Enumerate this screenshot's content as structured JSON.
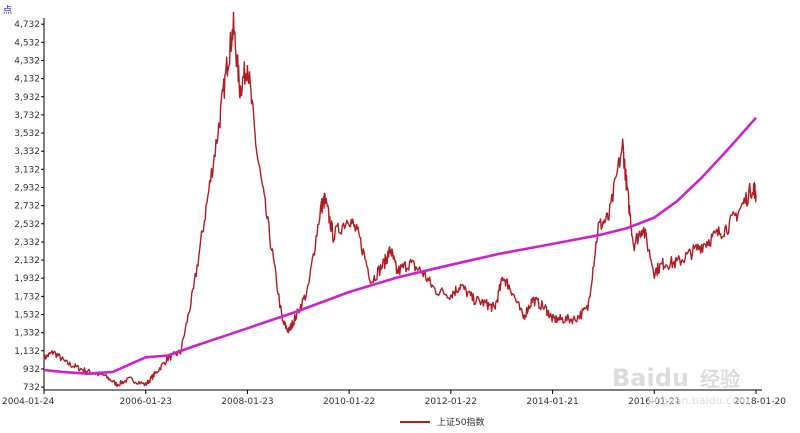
{
  "chart_data": {
    "type": "line",
    "unit_label": "点",
    "y_ticks": [
      732,
      932,
      1132,
      1332,
      1532,
      1732,
      1932,
      2132,
      2332,
      2532,
      2732,
      2932,
      3132,
      3332,
      3532,
      3732,
      3932,
      4132,
      4332,
      4532,
      4732
    ],
    "x_ticks": [
      "2004-01-24",
      "2006-01-23",
      "2008-01-23",
      "2010-01-22",
      "2012-01-22",
      "2014-01-21",
      "2016-01-21",
      "2018-01-20"
    ],
    "ylim": [
      700,
      4800
    ],
    "xlim": [
      "2004-01-24",
      "2018-01-20"
    ],
    "legend": {
      "position": "bottom-center",
      "label": "上证50指数"
    },
    "grid": false,
    "series": [
      {
        "name": "上证50指数",
        "color": "#b01c22",
        "points": [
          [
            "2004-01-24",
            1050
          ],
          [
            "2004-04-01",
            1120
          ],
          [
            "2004-07-01",
            1000
          ],
          [
            "2004-10-01",
            940
          ],
          [
            "2005-01-01",
            890
          ],
          [
            "2005-04-01",
            860
          ],
          [
            "2005-07-01",
            760
          ],
          [
            "2005-10-01",
            820
          ],
          [
            "2006-01-23",
            760
          ],
          [
            "2006-04-01",
            880
          ],
          [
            "2006-07-01",
            1050
          ],
          [
            "2006-10-01",
            1120
          ],
          [
            "2007-01-01",
            1800
          ],
          [
            "2007-04-01",
            2700
          ],
          [
            "2007-07-01",
            3600
          ],
          [
            "2007-09-01",
            4300
          ],
          [
            "2007-10-15",
            4700
          ],
          [
            "2007-12-01",
            4000
          ],
          [
            "2008-01-23",
            4300
          ],
          [
            "2008-04-01",
            3300
          ],
          [
            "2008-07-01",
            2400
          ],
          [
            "2008-10-01",
            1450
          ],
          [
            "2008-11-15",
            1350
          ],
          [
            "2009-01-01",
            1500
          ],
          [
            "2009-04-01",
            1800
          ],
          [
            "2009-07-01",
            2700
          ],
          [
            "2009-08-01",
            2800
          ],
          [
            "2009-10-01",
            2400
          ],
          [
            "2010-01-22",
            2600
          ],
          [
            "2010-04-01",
            2400
          ],
          [
            "2010-07-01",
            1900
          ],
          [
            "2010-10-01",
            2100
          ],
          [
            "2010-11-15",
            2250
          ],
          [
            "2011-01-01",
            2000
          ],
          [
            "2011-04-01",
            2100
          ],
          [
            "2011-07-01",
            2000
          ],
          [
            "2011-10-01",
            1800
          ],
          [
            "2012-01-22",
            1750
          ],
          [
            "2012-04-01",
            1850
          ],
          [
            "2012-07-01",
            1700
          ],
          [
            "2012-10-01",
            1650
          ],
          [
            "2012-12-01",
            1600
          ],
          [
            "2013-02-01",
            1950
          ],
          [
            "2013-04-01",
            1800
          ],
          [
            "2013-06-25",
            1500
          ],
          [
            "2013-09-01",
            1700
          ],
          [
            "2013-12-01",
            1600
          ],
          [
            "2014-01-21",
            1480
          ],
          [
            "2014-04-01",
            1480
          ],
          [
            "2014-07-01",
            1480
          ],
          [
            "2014-10-01",
            1600
          ],
          [
            "2014-12-15",
            2500
          ],
          [
            "2015-03-01",
            2600
          ],
          [
            "2015-06-08",
            3400
          ],
          [
            "2015-07-10",
            2900
          ],
          [
            "2015-08-26",
            2300
          ],
          [
            "2015-11-01",
            2500
          ],
          [
            "2016-01-21",
            2000
          ],
          [
            "2016-04-01",
            2100
          ],
          [
            "2016-07-01",
            2100
          ],
          [
            "2016-10-01",
            2200
          ],
          [
            "2017-01-01",
            2300
          ],
          [
            "2017-04-01",
            2400
          ],
          [
            "2017-07-01",
            2500
          ],
          [
            "2017-10-01",
            2700
          ],
          [
            "2018-01-01",
            2950
          ],
          [
            "2018-01-20",
            2850
          ]
        ]
      },
      {
        "name": "",
        "color": "#cc22cc",
        "points": [
          [
            "2004-01-24",
            920
          ],
          [
            "2004-06-01",
            900
          ],
          [
            "2004-12-01",
            880
          ],
          [
            "2005-06-01",
            900
          ],
          [
            "2006-01-23",
            1060
          ],
          [
            "2006-07-01",
            1080
          ],
          [
            "2007-01-01",
            1180
          ],
          [
            "2008-01-23",
            1380
          ],
          [
            "2009-01-01",
            1560
          ],
          [
            "2010-01-22",
            1780
          ],
          [
            "2011-01-01",
            1940
          ],
          [
            "2012-01-22",
            2080
          ],
          [
            "2013-01-01",
            2200
          ],
          [
            "2014-01-21",
            2310
          ],
          [
            "2015-01-01",
            2410
          ],
          [
            "2015-07-01",
            2480
          ],
          [
            "2016-01-21",
            2600
          ],
          [
            "2016-07-01",
            2780
          ],
          [
            "2017-01-01",
            3050
          ],
          [
            "2017-07-01",
            3350
          ],
          [
            "2018-01-20",
            3700
          ]
        ]
      }
    ]
  },
  "watermark": {
    "brand": "Baidu",
    "product": "经验",
    "url": "jingyan.baidu.com"
  }
}
